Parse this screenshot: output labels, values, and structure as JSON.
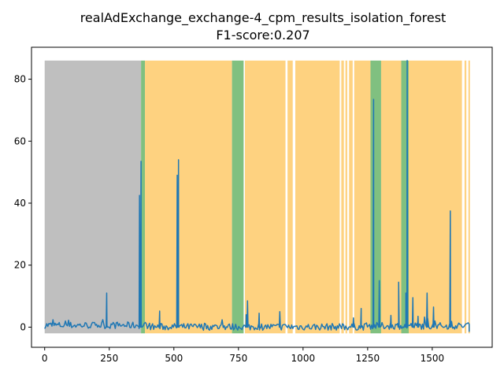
{
  "chart_data": {
    "type": "line",
    "title": "realAdExchange_exchange-4_cpm_results_isolation_forest",
    "subtitle": "F1-score:0.207",
    "xlabel": "",
    "ylabel": "",
    "xlim": [
      -51,
      1732
    ],
    "ylim": [
      -6.5,
      90.3
    ],
    "xticks": [
      0,
      250,
      500,
      750,
      1000,
      1250,
      1500
    ],
    "yticks": [
      0,
      20,
      40,
      60,
      80
    ],
    "grid": false,
    "band_top": 86,
    "band_bottom": -2,
    "colors": {
      "line": "#1f77b4",
      "probation": "#bfbfbf",
      "detected": "#fed280",
      "window": "#80c080"
    },
    "regions": {
      "probation": [
        [
          0,
          373
        ]
      ],
      "anomaly_windows": [
        [
          373,
          388
        ],
        [
          725,
          770
        ],
        [
          1261,
          1302
        ],
        [
          1380,
          1409
        ]
      ],
      "detections": [
        [
          388,
          725
        ],
        [
          775,
          932
        ],
        [
          940,
          960
        ],
        [
          970,
          1142
        ],
        [
          1148,
          1158
        ],
        [
          1164,
          1171
        ],
        [
          1178,
          1192
        ],
        [
          1198,
          1261
        ],
        [
          1302,
          1380
        ],
        [
          1409,
          1615
        ],
        [
          1625,
          1632
        ],
        [
          1640,
          1646
        ]
      ]
    },
    "spikes": [
      [
        240,
        11
      ],
      [
        367,
        42.5
      ],
      [
        373,
        53.5
      ],
      [
        445,
        5.2
      ],
      [
        513,
        49
      ],
      [
        518,
        54
      ],
      [
        780,
        4
      ],
      [
        785,
        8.5
      ],
      [
        830,
        4.5
      ],
      [
        910,
        5
      ],
      [
        1195,
        3
      ],
      [
        1225,
        6
      ],
      [
        1273,
        73.5
      ],
      [
        1295,
        15
      ],
      [
        1340,
        3.8
      ],
      [
        1370,
        14.5
      ],
      [
        1398,
        11
      ],
      [
        1403,
        86
      ],
      [
        1425,
        9.5
      ],
      [
        1445,
        3.5
      ],
      [
        1480,
        11
      ],
      [
        1505,
        6.5
      ],
      [
        1570,
        37.5
      ]
    ],
    "baseline_points": 410,
    "x_max": 1643
  }
}
